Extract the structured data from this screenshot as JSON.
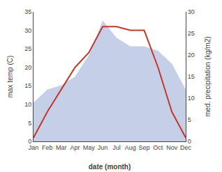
{
  "chart_data": {
    "type": "line",
    "xlabel": "date (month)",
    "ylabel": "max temp (C)",
    "y2label": "med. precipitation (kg/m2)",
    "categories": [
      "Jan",
      "Feb",
      "Mar",
      "Apr",
      "May",
      "Jun",
      "Jul",
      "Aug",
      "Sep",
      "Oct",
      "Nov",
      "Dec"
    ],
    "series": [
      {
        "type": "area",
        "axis": "y2",
        "color": "#c5cfe8",
        "values": [
          9,
          12,
          13,
          15,
          20,
          28,
          24,
          22,
          22,
          21,
          18,
          12
        ]
      },
      {
        "type": "line",
        "color": "#c0392b",
        "values": [
          1,
          8,
          14,
          20,
          24,
          31,
          31,
          30,
          30,
          20,
          8,
          1
        ]
      }
    ],
    "ylim": [
      0,
      35
    ],
    "yticks": [
      0,
      5,
      10,
      15,
      20,
      25,
      30,
      35
    ],
    "y2lim": [
      0,
      30
    ],
    "y2ticks": [
      0,
      5,
      10,
      15,
      20,
      25,
      30
    ],
    "grid": false
  }
}
